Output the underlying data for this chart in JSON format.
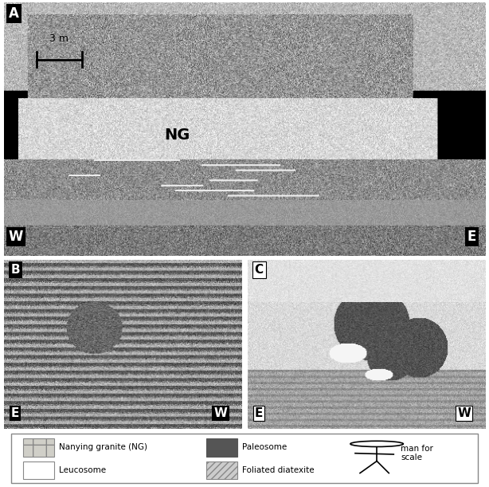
{
  "fig_width": 6.14,
  "fig_height": 6.11,
  "bg_color": "#ffffff",
  "panel_A": {
    "label": "A",
    "compass_left": "W",
    "compass_right": "E",
    "scale_text": "3 m",
    "annotation": "NG",
    "bg_gray": 0.72
  },
  "panel_B": {
    "label": "B",
    "compass_left": "E",
    "compass_right": "W",
    "bg_gray": 0.55
  },
  "panel_C": {
    "label": "C",
    "compass_left": "E",
    "compass_right": "W",
    "bg_gray": 0.88
  },
  "legend": {
    "border_color": "#888888",
    "bg_color": "#ffffff",
    "items": [
      {
        "label": "Nanying granite (NG)",
        "facecolor": "#d0cfc8",
        "edgecolor": "#888888",
        "hatch": "+"
      },
      {
        "label": "Leucosome",
        "facecolor": "#ffffff",
        "edgecolor": "#888888",
        "hatch": ""
      },
      {
        "label": "Paleosome",
        "facecolor": "#555555",
        "edgecolor": "#555555",
        "hatch": ""
      },
      {
        "label": "Foliated diatexite",
        "facecolor": "#cccccc",
        "edgecolor": "#888888",
        "hatch": "////"
      },
      {
        "label": "man for\nscale",
        "facecolor": "none",
        "edgecolor": "none",
        "hatch": ""
      }
    ]
  }
}
